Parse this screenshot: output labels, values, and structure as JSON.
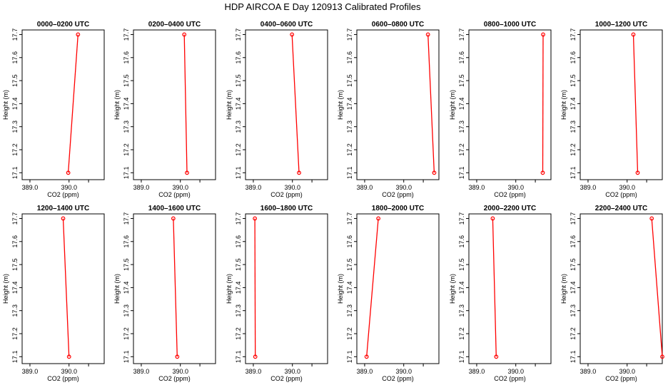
{
  "figure": {
    "title": "HDP AIRCOA E  Day 120913  Calibrated Profiles"
  },
  "colors": {
    "line": "#ff0000",
    "marker": "#ff0000",
    "axis": "#000000",
    "background": "#ffffff"
  },
  "chart_data": [
    {
      "type": "line",
      "title": "0000–0200 UTC",
      "xlabel": "CO2 (ppm)",
      "ylabel": "Height (m)",
      "xlim": [
        388.8,
        390.9
      ],
      "ylim": [
        17.07,
        17.72
      ],
      "xticks": [
        "389.0",
        "390.0"
      ],
      "yticks": [
        "17.1",
        "17.2",
        "17.3",
        "17.4",
        "17.5",
        "17.6",
        "17.7"
      ],
      "series": [
        {
          "x": [
            389.98,
            390.23
          ],
          "y": [
            17.1,
            17.7
          ]
        }
      ]
    },
    {
      "type": "line",
      "title": "0200–0400 UTC",
      "xlabel": "CO2 (ppm)",
      "ylabel": "Height (m)",
      "xlim": [
        388.8,
        390.9
      ],
      "ylim": [
        17.07,
        17.72
      ],
      "xticks": [
        "389.0",
        "390.0"
      ],
      "yticks": [
        "17.1",
        "17.2",
        "17.3",
        "17.4",
        "17.5",
        "17.6",
        "17.7"
      ],
      "series": [
        {
          "x": [
            390.17,
            390.1
          ],
          "y": [
            17.1,
            17.7
          ]
        }
      ]
    },
    {
      "type": "line",
      "title": "0400–0600 UTC",
      "xlabel": "CO2 (ppm)",
      "ylabel": "Height (m)",
      "xlim": [
        388.8,
        390.9
      ],
      "ylim": [
        17.07,
        17.72
      ],
      "xticks": [
        "389.0",
        "390.0"
      ],
      "yticks": [
        "17.1",
        "17.2",
        "17.3",
        "17.4",
        "17.5",
        "17.6",
        "17.7"
      ],
      "series": [
        {
          "x": [
            390.17,
            389.99
          ],
          "y": [
            17.1,
            17.7
          ]
        }
      ]
    },
    {
      "type": "line",
      "title": "0600–0800 UTC",
      "xlabel": "CO2 (ppm)",
      "ylabel": "Height (m)",
      "xlim": [
        388.8,
        390.9
      ],
      "ylim": [
        17.07,
        17.72
      ],
      "xticks": [
        "389.0",
        "390.0"
      ],
      "yticks": [
        "17.1",
        "17.2",
        "17.3",
        "17.4",
        "17.5",
        "17.6",
        "17.7"
      ],
      "series": [
        {
          "x": [
            390.78,
            390.62
          ],
          "y": [
            17.1,
            17.7
          ]
        }
      ]
    },
    {
      "type": "line",
      "title": "0800–1000 UTC",
      "xlabel": "CO2 (ppm)",
      "ylabel": "Height (m)",
      "xlim": [
        388.8,
        390.9
      ],
      "ylim": [
        17.07,
        17.72
      ],
      "xticks": [
        "389.0",
        "390.0"
      ],
      "yticks": [
        "17.1",
        "17.2",
        "17.3",
        "17.4",
        "17.5",
        "17.6",
        "17.7"
      ],
      "series": [
        {
          "x": [
            390.69,
            390.7
          ],
          "y": [
            17.1,
            17.7
          ]
        }
      ]
    },
    {
      "type": "line",
      "title": "1000–1200 UTC",
      "xlabel": "CO2 (ppm)",
      "ylabel": "Height (m)",
      "xlim": [
        388.8,
        390.9
      ],
      "ylim": [
        17.07,
        17.72
      ],
      "xticks": [
        "389.0",
        "390.0"
      ],
      "yticks": [
        "17.1",
        "17.2",
        "17.3",
        "17.4",
        "17.5",
        "17.6",
        "17.7"
      ],
      "series": [
        {
          "x": [
            390.27,
            390.16
          ],
          "y": [
            17.1,
            17.7
          ]
        }
      ]
    },
    {
      "type": "line",
      "title": "1200–1400 UTC",
      "xlabel": "CO2 (ppm)",
      "ylabel": "Height (m)",
      "xlim": [
        388.8,
        390.9
      ],
      "ylim": [
        17.07,
        17.72
      ],
      "xticks": [
        "389.0",
        "390.0"
      ],
      "yticks": [
        "17.1",
        "17.2",
        "17.3",
        "17.4",
        "17.5",
        "17.6",
        "17.7"
      ],
      "series": [
        {
          "x": [
            390.0,
            389.85
          ],
          "y": [
            17.1,
            17.7
          ]
        }
      ]
    },
    {
      "type": "line",
      "title": "1400–1600 UTC",
      "xlabel": "CO2 (ppm)",
      "ylabel": "Height (m)",
      "xlim": [
        388.8,
        390.9
      ],
      "ylim": [
        17.07,
        17.72
      ],
      "xticks": [
        "389.0",
        "390.0"
      ],
      "yticks": [
        "17.1",
        "17.2",
        "17.3",
        "17.4",
        "17.5",
        "17.6",
        "17.7"
      ],
      "series": [
        {
          "x": [
            389.92,
            389.82
          ],
          "y": [
            17.1,
            17.7
          ]
        }
      ]
    },
    {
      "type": "line",
      "title": "1600–1800 UTC",
      "xlabel": "CO2 (ppm)",
      "ylabel": "Height (m)",
      "xlim": [
        388.8,
        390.9
      ],
      "ylim": [
        17.07,
        17.72
      ],
      "xticks": [
        "389.0",
        "390.0"
      ],
      "yticks": [
        "17.1",
        "17.2",
        "17.3",
        "17.4",
        "17.5",
        "17.6",
        "17.7"
      ],
      "series": [
        {
          "x": [
            389.05,
            389.04
          ],
          "y": [
            17.1,
            17.7
          ]
        }
      ]
    },
    {
      "type": "line",
      "title": "1800–2000 UTC",
      "xlabel": "CO2 (ppm)",
      "ylabel": "Height (m)",
      "xlim": [
        388.8,
        390.9
      ],
      "ylim": [
        17.07,
        17.72
      ],
      "xticks": [
        "389.0",
        "390.0"
      ],
      "yticks": [
        "17.1",
        "17.2",
        "17.3",
        "17.4",
        "17.5",
        "17.6",
        "17.7"
      ],
      "series": [
        {
          "x": [
            389.05,
            389.35
          ],
          "y": [
            17.1,
            17.7
          ]
        }
      ]
    },
    {
      "type": "line",
      "title": "2000–2200 UTC",
      "xlabel": "CO2 (ppm)",
      "ylabel": "Height (m)",
      "xlim": [
        388.8,
        390.9
      ],
      "ylim": [
        17.07,
        17.72
      ],
      "xticks": [
        "389.0",
        "390.0"
      ],
      "yticks": [
        "17.1",
        "17.2",
        "17.3",
        "17.4",
        "17.5",
        "17.6",
        "17.7"
      ],
      "series": [
        {
          "x": [
            389.5,
            389.41
          ],
          "y": [
            17.1,
            17.7
          ]
        }
      ]
    },
    {
      "type": "line",
      "title": "2200–2400 UTC",
      "xlabel": "CO2 (ppm)",
      "ylabel": "Height (m)",
      "xlim": [
        388.8,
        390.9
      ],
      "ylim": [
        17.07,
        17.72
      ],
      "xticks": [
        "389.0",
        "390.0"
      ],
      "yticks": [
        "17.1",
        "17.2",
        "17.3",
        "17.4",
        "17.5",
        "17.6",
        "17.7"
      ],
      "series": [
        {
          "x": [
            390.9,
            390.63
          ],
          "y": [
            17.1,
            17.7
          ]
        }
      ]
    }
  ]
}
